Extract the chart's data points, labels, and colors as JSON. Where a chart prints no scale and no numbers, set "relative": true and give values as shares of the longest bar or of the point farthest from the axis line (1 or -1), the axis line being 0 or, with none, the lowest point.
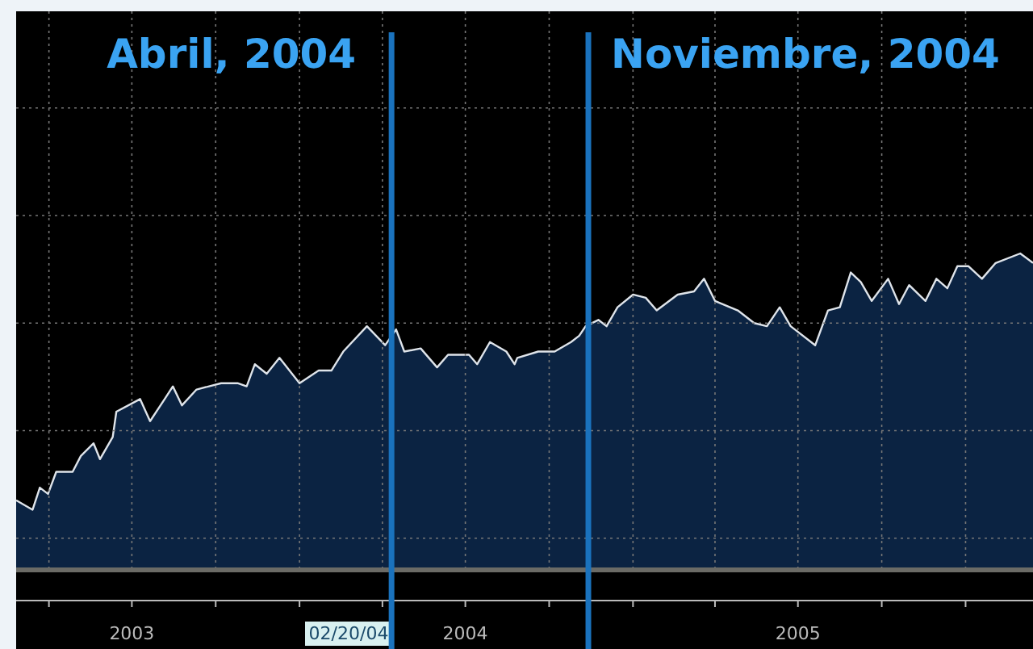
{
  "chart_data": {
    "type": "area",
    "relative": true,
    "grid": true,
    "tick_labels": "x",
    "xlim": [
      "2003-02-24",
      "2006-03-16"
    ],
    "xticks": [
      {
        "value": "2003-04-01",
        "label": null
      },
      {
        "value": "2003-07-01",
        "label": "2003"
      },
      {
        "value": "2003-10-01",
        "label": null
      },
      {
        "value": "2004-01-01",
        "label": null
      },
      {
        "value": "2004-04-01",
        "label": null
      },
      {
        "value": "2004-07-01",
        "label": "2004"
      },
      {
        "value": "2004-10-01",
        "label": null
      },
      {
        "value": "2005-01-01",
        "label": null
      },
      {
        "value": "2005-04-01",
        "label": null
      },
      {
        "value": "2005-07-01",
        "label": "2005"
      },
      {
        "value": "2005-10-01",
        "label": null
      },
      {
        "value": "2006-01-01",
        "label": null
      }
    ],
    "x": [
      "2003-02-24",
      "2003-03-14",
      "2003-03-22",
      "2003-03-31",
      "2003-04-09",
      "2003-04-27",
      "2003-05-06",
      "2003-05-20",
      "2003-05-27",
      "2003-06-10",
      "2003-06-14",
      "2003-07-10",
      "2003-07-21",
      "2003-08-06",
      "2003-08-15",
      "2003-08-25",
      "2003-09-10",
      "2003-10-07",
      "2003-10-25",
      "2003-11-04",
      "2003-11-13",
      "2003-11-26",
      "2003-12-10",
      "2004-01-01",
      "2004-01-22",
      "2004-02-05",
      "2004-02-18",
      "2004-03-15",
      "2004-04-04",
      "2004-04-16",
      "2004-04-25",
      "2004-05-13",
      "2004-05-31",
      "2004-06-12",
      "2004-07-05",
      "2004-07-14",
      "2004-07-28",
      "2004-08-15",
      "2004-08-24",
      "2004-08-27",
      "2004-09-19",
      "2004-10-07",
      "2004-10-25",
      "2004-11-03",
      "2004-11-10",
      "2004-11-24",
      "2004-12-03",
      "2004-12-15",
      "2005-01-01",
      "2005-01-15",
      "2005-01-27",
      "2005-02-19",
      "2005-03-09",
      "2005-03-20",
      "2005-04-01",
      "2005-04-26",
      "2005-05-14",
      "2005-05-28",
      "2005-06-11",
      "2005-06-23",
      "2005-07-20",
      "2005-08-03",
      "2005-08-16",
      "2005-08-28",
      "2005-09-08",
      "2005-09-20",
      "2005-10-08",
      "2005-10-20",
      "2005-10-31",
      "2005-11-18",
      "2005-11-30",
      "2005-12-12",
      "2005-12-23",
      "2006-01-04",
      "2006-01-19",
      "2006-02-03",
      "2006-03-02",
      "2006-03-16"
    ],
    "series": [
      {
        "color": "#0b2342",
        "values": [
          0.22,
          0.19,
          0.26,
          0.24,
          0.31,
          0.31,
          0.36,
          0.4,
          0.35,
          0.42,
          0.5,
          0.54,
          0.47,
          0.54,
          0.58,
          0.52,
          0.57,
          0.59,
          0.59,
          0.58,
          0.65,
          0.62,
          0.67,
          0.59,
          0.63,
          0.63,
          0.69,
          0.77,
          0.71,
          0.76,
          0.69,
          0.7,
          0.64,
          0.68,
          0.68,
          0.65,
          0.72,
          0.69,
          0.65,
          0.67,
          0.69,
          0.69,
          0.72,
          0.74,
          0.77,
          0.79,
          0.77,
          0.83,
          0.87,
          0.86,
          0.82,
          0.87,
          0.88,
          0.92,
          0.85,
          0.82,
          0.78,
          0.77,
          0.83,
          0.77,
          0.71,
          0.82,
          0.83,
          0.94,
          0.91,
          0.85,
          0.92,
          0.84,
          0.9,
          0.85,
          0.92,
          0.89,
          0.96,
          0.96,
          0.92,
          0.97,
          1.0,
          0.97
        ]
      }
    ],
    "ref_lines": [
      {
        "axis": "x",
        "value": "2004-04-11",
        "label": "Abril, 2004",
        "color": "#1a72bd"
      },
      {
        "axis": "x",
        "value": "2004-11-13",
        "label": "Noviembre, 2004",
        "color": "#1a72bd"
      }
    ],
    "annotations": [
      "02/20/04"
    ]
  }
}
